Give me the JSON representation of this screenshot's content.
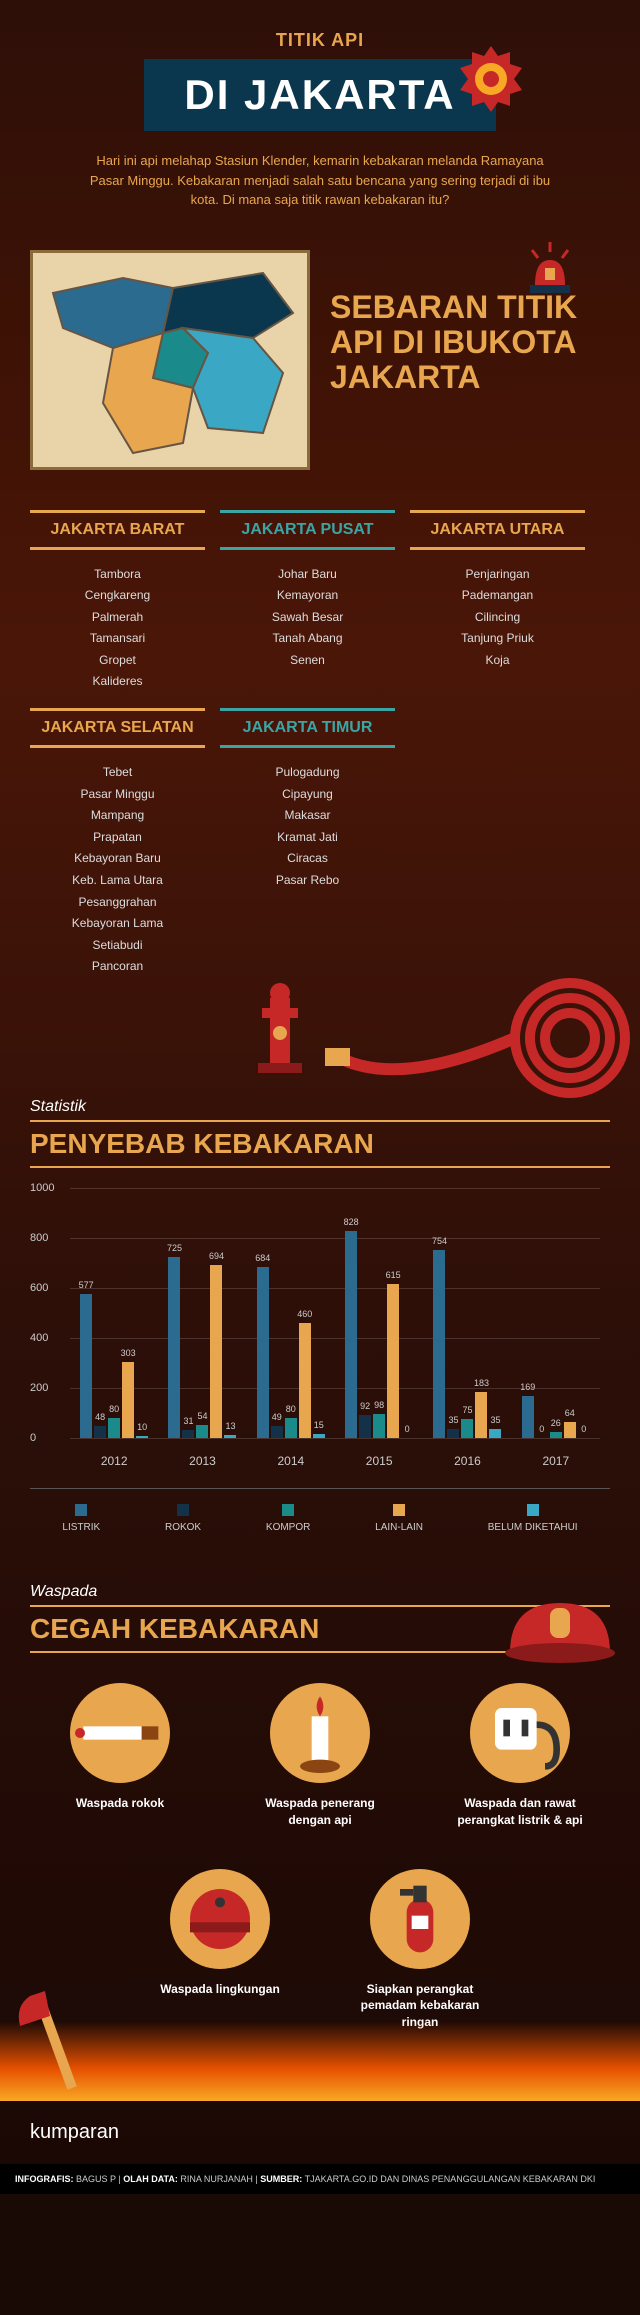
{
  "header": {
    "eyebrow": "TITIK API",
    "title": "DI JAKARTA",
    "intro": "Hari ini api melahap Stasiun Klender, kemarin kebakaran melanda Ramayana Pasar Minggu. Kebakaran menjadi salah satu bencana yang sering terjadi di ibu kota. Di mana saja titik rawan kebakaran itu?"
  },
  "colors": {
    "accent_orange": "#e8a64e",
    "accent_teal": "#3ba5a5",
    "dark_teal": "#0a374d",
    "bg_dark": "#2d0f08",
    "map_bg": "#e8d4a8",
    "map_border": "#8b6b3a",
    "chart_blue": "#2a6b8f",
    "chart_darknavy": "#13324a",
    "chart_teal": "#1a8a8a",
    "chart_orange": "#e8a64e",
    "chart_cyan": "#3aa8c4",
    "red": "#c62828"
  },
  "map_section": {
    "title": "SEBARAN TITIK API DI IBUKOTA JAKARTA"
  },
  "regions": [
    {
      "name": "JAKARTA BARAT",
      "color": "orange",
      "items": [
        "Tambora",
        "Cengkareng",
        "Palmerah",
        "Tamansari",
        "Gropet",
        "Kalideres"
      ]
    },
    {
      "name": "JAKARTA PUSAT",
      "color": "teal",
      "items": [
        "Johar Baru",
        "Kemayoran",
        "Sawah Besar",
        "Tanah Abang",
        "Senen"
      ]
    },
    {
      "name": "JAKARTA UTARA",
      "color": "orange",
      "items": [
        "Penjaringan",
        "Pademangan",
        "Cilincing",
        "Tanjung Priuk",
        "Koja"
      ]
    },
    {
      "name": "JAKARTA SELATAN",
      "color": "orange",
      "items": [
        "Tebet",
        "Pasar Minggu",
        "Mampang",
        "Prapatan",
        "Kebayoran Baru",
        "Keb. Lama Utara",
        "Pesanggrahan",
        "Kebayoran Lama",
        "Setiabudi",
        "Pancoran"
      ]
    },
    {
      "name": "JAKARTA TIMUR",
      "color": "teal",
      "items": [
        "Pulogadung",
        "Cipayung",
        "Makasar",
        "Kramat Jati",
        "Ciracas",
        "Pasar Rebo"
      ]
    }
  ],
  "stats": {
    "label": "Statistik",
    "title": "PENYEBAB KEBAKARAN",
    "y_max": 1000,
    "y_ticks": [
      0,
      200,
      400,
      600,
      800,
      1000
    ],
    "years": [
      "2012",
      "2013",
      "2014",
      "2015",
      "2016",
      "2017"
    ],
    "series": [
      {
        "name": "LISTRIK",
        "color": "#2a6b8f"
      },
      {
        "name": "ROKOK",
        "color": "#13324a"
      },
      {
        "name": "KOMPOR",
        "color": "#1a8a8a"
      },
      {
        "name": "LAIN-LAIN",
        "color": "#e8a64e"
      },
      {
        "name": "BELUM DIKETAHUI",
        "color": "#3aa8c4"
      }
    ],
    "data": [
      {
        "year": "2012",
        "values": [
          577,
          48,
          80,
          303,
          10
        ]
      },
      {
        "year": "2013",
        "values": [
          725,
          31,
          54,
          694,
          13
        ]
      },
      {
        "year": "2014",
        "values": [
          684,
          49,
          80,
          460,
          15
        ]
      },
      {
        "year": "2015",
        "values": [
          828,
          92,
          98,
          615,
          0
        ]
      },
      {
        "year": "2016",
        "values": [
          754,
          35,
          75,
          183,
          35
        ]
      },
      {
        "year": "2017",
        "values": [
          169,
          0,
          26,
          64,
          0
        ]
      }
    ]
  },
  "prevent": {
    "label": "Waspada",
    "title": "CEGAH KEBAKARAN",
    "items": [
      {
        "label": "Waspada rokok",
        "icon": "cigarette"
      },
      {
        "label": "Waspada penerang dengan api",
        "icon": "candle"
      },
      {
        "label": "Waspada dan rawat perangkat listrik & api",
        "icon": "plug"
      },
      {
        "label": "Waspada lingkungan",
        "icon": "bell"
      },
      {
        "label": "Siapkan perangkat pemadam kebakaran ringan",
        "icon": "extinguisher"
      }
    ]
  },
  "footer": {
    "logo": "kumparan",
    "credits_infografis_label": "INFOGRAFIS:",
    "credits_infografis": "BAGUS P",
    "credits_data_label": "OLAH DATA:",
    "credits_data": "RINA NURJANAH",
    "credits_source_label": "SUMBER:",
    "credits_source": "TJAKARTA.GO.ID DAN DINAS PENANGGULANGAN KEBAKARAN DKI"
  }
}
